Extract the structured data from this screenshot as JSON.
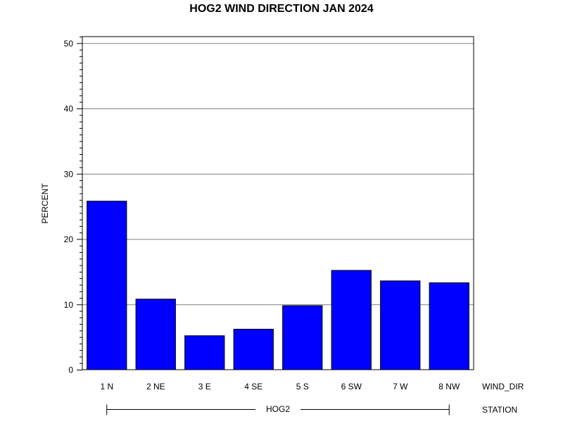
{
  "chart_data": {
    "type": "bar",
    "title": "HOG2 WIND DIRECTION JAN 2024",
    "ylabel": "PERCENT",
    "xlabel": "WIND_DIR",
    "group_axis_label": "STATION",
    "group_label": "HOG2",
    "categories": [
      "1 N",
      "2 NE",
      "3 E",
      "4 SE",
      "5 S",
      "6 SW",
      "7 W",
      "8 NW"
    ],
    "values": [
      25.8,
      10.8,
      5.2,
      6.2,
      9.8,
      15.2,
      13.6,
      13.3
    ],
    "ylim": [
      0,
      51
    ],
    "yticks": [
      0,
      10,
      20,
      30,
      40,
      50
    ],
    "yminor_step": 1,
    "grid": true,
    "bar_color": "#0000ff",
    "bar_outline_color": "#000000",
    "grid_color": "#808080"
  }
}
